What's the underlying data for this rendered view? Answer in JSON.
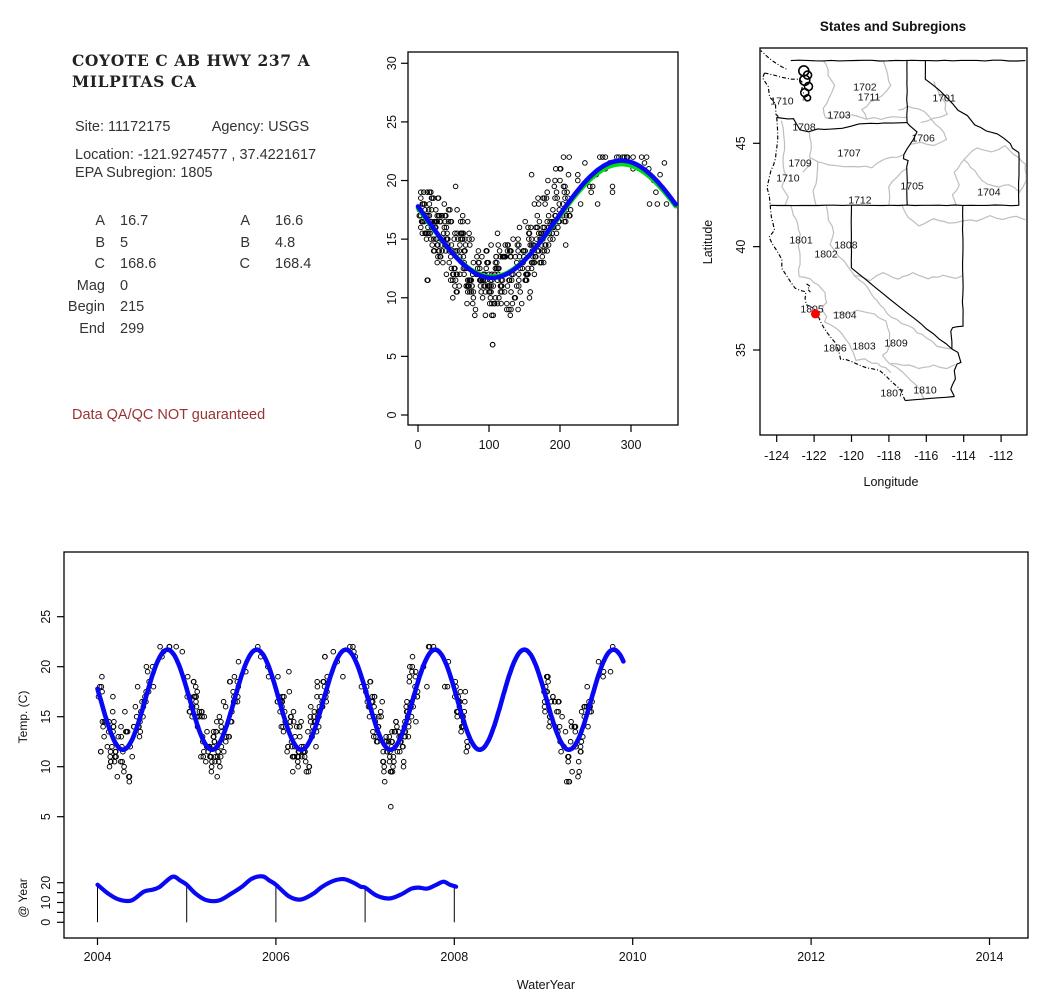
{
  "site_panel": {
    "title_line1": "COYOTE C AB HWY 237 A",
    "title_line2": "MILPITAS CA",
    "site_label": "Site:",
    "site_value": "11172175",
    "agency_label": "Agency:",
    "agency_value": "USGS",
    "location_line": "Location: -121.9274577 , 37.4221617",
    "epa_line": "EPA Subregion: 1805",
    "params_col1": [
      {
        "label": "A",
        "value": "16.7"
      },
      {
        "label": "B",
        "value": "5"
      },
      {
        "label": "C",
        "value": "168.6"
      },
      {
        "label": "Mag",
        "value": "0"
      },
      {
        "label": "Begin",
        "value": "215"
      },
      {
        "label": "End",
        "value": "299"
      }
    ],
    "params_col2": [
      {
        "label": "A",
        "value": "16.6"
      },
      {
        "label": "B",
        "value": "4.8"
      },
      {
        "label": "C",
        "value": "168.4"
      }
    ],
    "qa_notice": "Data QA/QC NOT guaranteed",
    "qa_color": "#993333"
  },
  "colors": {
    "fit_blue": "#0808f5",
    "fit_green": "#00dd11",
    "marker_red": "#ff0000",
    "map_gray": "#bebebe",
    "point_black": "#000000"
  },
  "chart_data": [
    {
      "id": "seasonal-day-plot",
      "type": "scatter",
      "title": "",
      "xlabel": "",
      "ylabel": "",
      "x_ticks": [
        0,
        100,
        200,
        300
      ],
      "y_ticks": [
        0,
        5,
        10,
        15,
        20,
        25,
        30
      ],
      "xlim": [
        -14,
        366
      ],
      "ylim": [
        0,
        31
      ],
      "fit_blue": {
        "A": 16.7,
        "B": 5.0,
        "min_day": 104,
        "period": 365
      },
      "fit_green": {
        "A": 16.6,
        "B": 4.8,
        "min_day": 104,
        "period": 365
      },
      "extra_points_day": [
        [
          205,
          22
        ],
        [
          213,
          22
        ],
        [
          160,
          20.5
        ],
        [
          288,
          22
        ],
        [
          295,
          21.5
        ],
        [
          105,
          6
        ]
      ]
    },
    {
      "id": "map",
      "type": "map",
      "title": "States and Subregions",
      "xlabel": "Longitude",
      "ylabel": "Latitude",
      "x_ticks": [
        -124,
        -122,
        -120,
        -118,
        -116,
        -114,
        -112
      ],
      "y_ticks": [
        35,
        40,
        45
      ],
      "xlim": [
        -124.9,
        -110.6
      ],
      "ylim": [
        30.9,
        49.6
      ],
      "site_marker": {
        "lon": -121.9274577,
        "lat": 37.4221617
      },
      "subregion_labels": [
        {
          "id": "1711",
          "lon": -119.06,
          "lat": 47.24
        },
        {
          "id": "1702",
          "lon": -119.28,
          "lat": 47.72
        },
        {
          "id": "1701",
          "lon": -115.05,
          "lat": 47.19
        },
        {
          "id": "1710",
          "lon": -123.72,
          "lat": 47.05
        },
        {
          "id": "1703",
          "lon": -120.67,
          "lat": 46.37
        },
        {
          "id": "1708",
          "lon": -122.54,
          "lat": 45.79
        },
        {
          "id": "1706",
          "lon": -116.17,
          "lat": 45.26
        },
        {
          "id": "1707",
          "lon": -120.13,
          "lat": 44.53
        },
        {
          "id": "1709",
          "lon": -122.75,
          "lat": 44.05
        },
        {
          "id": "1710",
          "lon": -123.4,
          "lat": 43.32
        },
        {
          "id": "1705",
          "lon": -116.76,
          "lat": 42.93
        },
        {
          "id": "1704",
          "lon": -112.65,
          "lat": 42.64
        },
        {
          "id": "1712",
          "lon": -119.55,
          "lat": 42.26
        },
        {
          "id": "1801",
          "lon": -122.7,
          "lat": 40.32
        },
        {
          "id": "1808",
          "lon": -120.3,
          "lat": 40.08
        },
        {
          "id": "1802",
          "lon": -121.36,
          "lat": 39.64
        },
        {
          "id": "1805",
          "lon": -122.11,
          "lat": 36.98
        },
        {
          "id": "1804",
          "lon": -120.35,
          "lat": 36.69
        },
        {
          "id": "1806",
          "lon": -120.88,
          "lat": 35.1
        },
        {
          "id": "1803",
          "lon": -119.33,
          "lat": 35.19
        },
        {
          "id": "1809",
          "lon": -117.62,
          "lat": 35.34
        },
        {
          "id": "1807",
          "lon": -117.83,
          "lat": 32.92
        },
        {
          "id": "1810",
          "lon": -116.07,
          "lat": 33.06
        }
      ]
    },
    {
      "id": "timeseries",
      "type": "scatter",
      "xlabel": "WaterYear",
      "ylabel": "Temp. (C)",
      "sub_ylabel": "@ Year",
      "x_ticks": [
        2004,
        2006,
        2008,
        2010,
        2012,
        2014
      ],
      "y_ticks": [
        5,
        10,
        15,
        20,
        25
      ],
      "sub_y_ticks": [
        0,
        5,
        10,
        15,
        20
      ],
      "sub_y_tick_labels": [
        0,
        10,
        20
      ],
      "xlim": [
        2003.62,
        2014.43
      ],
      "fit": {
        "A": 16.7,
        "B": 5.0,
        "min_day": 104,
        "period": 365
      },
      "fit_span": [
        2004.0,
        2009.9
      ],
      "water_years": [
        {
          "year": 2004,
          "dense": [
            2,
            215,
            0.42
          ],
          "sparse": [
            225,
            352,
            0.06
          ]
        },
        {
          "year": 2005,
          "dense": [
            2,
            215,
            0.42
          ],
          "sparse": [
            225,
            352,
            0.05
          ]
        },
        {
          "year": 2006,
          "dense": [
            2,
            215,
            0.4
          ],
          "sparse": [
            225,
            352,
            0.05
          ]
        },
        {
          "year": 2007,
          "dense": [
            2,
            215,
            0.42
          ],
          "sparse": [
            225,
            352,
            0.05
          ]
        },
        {
          "year": 2008,
          "dense": [
            2,
            55,
            0.5
          ]
        },
        {
          "year": 2009,
          "dense": [
            2,
            200,
            0.36
          ],
          "sparse": [
            205,
            354,
            0.08
          ]
        }
      ],
      "scatter": {
        "seed": 42,
        "noise_sd": 1.7,
        "quantize": 0.5,
        "y_clip": [
          8.5,
          22
        ]
      },
      "outlier": {
        "year": 2007,
        "day": 105,
        "value": 6
      },
      "at_year_series": {
        "x": [
          2004.0,
          2004.12,
          2004.24,
          2004.38,
          2004.52,
          2004.62,
          2004.7,
          2004.84,
          2004.93,
          2005.0,
          2005.1,
          2005.22,
          2005.36,
          2005.5,
          2005.62,
          2005.73,
          2005.85,
          2005.93,
          2006.0,
          2006.15,
          2006.28,
          2006.42,
          2006.52,
          2006.65,
          2006.76,
          2006.87,
          2006.95,
          2007.0,
          2007.13,
          2007.27,
          2007.4,
          2007.52,
          2007.6,
          2007.7,
          2007.8,
          2007.88,
          2007.95,
          2008.02
        ],
        "y": [
          19.0,
          14.5,
          11.5,
          11.0,
          15.5,
          16.5,
          18.0,
          23.0,
          21.0,
          19.0,
          14.5,
          11.2,
          11.0,
          14.5,
          18.0,
          22.0,
          23.2,
          21.0,
          19.0,
          13.0,
          11.5,
          14.5,
          18.0,
          21.0,
          21.8,
          20.0,
          18.0,
          17.5,
          13.5,
          12.0,
          14.0,
          17.0,
          17.5,
          17.0,
          19.0,
          20.5,
          19.0,
          18.0
        ]
      },
      "drop_line_years": [
        2004,
        2005,
        2006,
        2007,
        2008
      ]
    }
  ],
  "map_wiggle_seed": 7
}
